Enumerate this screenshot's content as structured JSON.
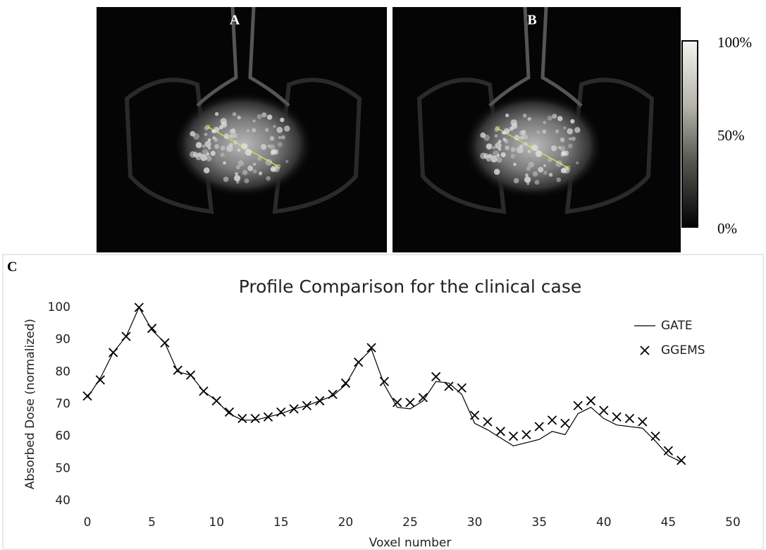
{
  "panels": {
    "a": "A",
    "b": "B",
    "c": "C"
  },
  "colorbar": {
    "ticks": [
      {
        "value": 100,
        "label": "100%"
      },
      {
        "value": 50,
        "label": "50%"
      },
      {
        "value": 0,
        "label": "0%"
      }
    ],
    "lim": [
      0,
      100
    ]
  },
  "chart_data": {
    "type": "line",
    "title": "Profile Comparison for the clinical case",
    "xlabel": "Voxel number",
    "ylabel": "Absorbed Dose (normalized)",
    "x": [
      0,
      1,
      2,
      3,
      4,
      5,
      6,
      7,
      8,
      9,
      10,
      11,
      12,
      13,
      14,
      15,
      16,
      17,
      18,
      19,
      20,
      21,
      22,
      23,
      24,
      25,
      26,
      27,
      28,
      29,
      30,
      31,
      32,
      33,
      34,
      35,
      36,
      37,
      38,
      39,
      40,
      41,
      42,
      43,
      44,
      45,
      46
    ],
    "series": [
      {
        "name": "GATE",
        "color": "#000000",
        "style": "line",
        "values": [
          72,
          78,
          86,
          91,
          100,
          93,
          89,
          80,
          79,
          74,
          71,
          67,
          65,
          65,
          66,
          67,
          68.5,
          69.5,
          71,
          72.5,
          76,
          83,
          87,
          76,
          69,
          68.5,
          71,
          77,
          76.5,
          73,
          64,
          62,
          59.5,
          57,
          58,
          59,
          61.5,
          60.5,
          67,
          69,
          65.5,
          63.5,
          63,
          62.5,
          58.5,
          54,
          52
        ]
      },
      {
        "name": "GGEMS",
        "color": "#000000",
        "style": "cross",
        "values": [
          72.5,
          77.5,
          86,
          91,
          100,
          93.5,
          89,
          80.5,
          79,
          74,
          71,
          67.5,
          65.5,
          65.5,
          66,
          67.5,
          68.5,
          69.5,
          71,
          73,
          76.5,
          83,
          87.5,
          77,
          70.5,
          70.5,
          72,
          78.5,
          75.5,
          75,
          66.5,
          64.5,
          61.5,
          60,
          60.5,
          63,
          65,
          64,
          69.5,
          71,
          68,
          66,
          65.5,
          64.5,
          60,
          55.5,
          52.5
        ]
      }
    ],
    "xlim": [
      0,
      50
    ],
    "xticks": [
      0,
      5,
      10,
      15,
      20,
      25,
      30,
      35,
      40,
      45,
      50
    ],
    "ylim": [
      40,
      100
    ],
    "yticks": [
      40,
      50,
      60,
      70,
      80,
      90,
      100
    ],
    "grid": false,
    "legend": "top-right"
  }
}
